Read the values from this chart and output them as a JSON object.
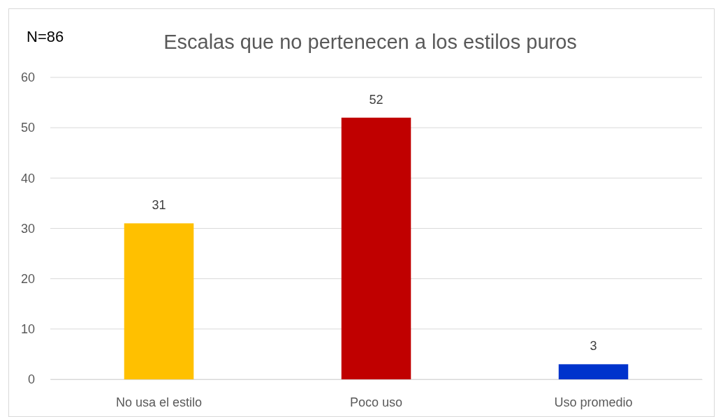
{
  "chart_data": {
    "type": "bar",
    "title": "Escalas que no pertenecen a los estilos puros",
    "annotations": [
      "N=86"
    ],
    "categories": [
      "No usa el estilo",
      "Poco uso",
      "Uso promedio"
    ],
    "values": [
      31,
      52,
      3
    ],
    "colors": [
      "#ffc000",
      "#c00000",
      "#0033cc"
    ],
    "ylim": [
      0,
      60
    ],
    "yticks": [
      0,
      10,
      20,
      30,
      40,
      50,
      60
    ],
    "grid": "y",
    "data_labels": true
  }
}
